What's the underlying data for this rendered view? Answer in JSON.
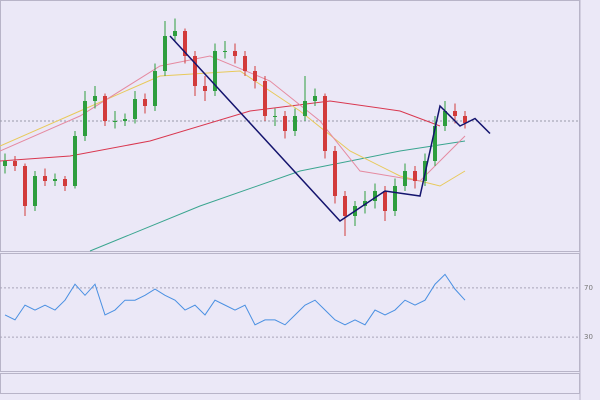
{
  "chart_data": [
    {
      "type": "candlestick",
      "xlim": [
        -0.5,
        57.5
      ],
      "ylim": [
        0,
        100
      ],
      "up_color": "#2e9e3e",
      "down_color": "#d23b3b",
      "hline": 52,
      "ohlc": [
        [
          34,
          39,
          31,
          36
        ],
        [
          36,
          38,
          32,
          34
        ],
        [
          34,
          35,
          14,
          18
        ],
        [
          18,
          32,
          16,
          30
        ],
        [
          30,
          33,
          26,
          28
        ],
        [
          28,
          31,
          26,
          28.8
        ],
        [
          28.8,
          30,
          24,
          26
        ],
        [
          26,
          48,
          25,
          46
        ],
        [
          46,
          64,
          44,
          60
        ],
        [
          60,
          66,
          57,
          62
        ],
        [
          62,
          63,
          50,
          52
        ],
        [
          52,
          56,
          49,
          52
        ],
        [
          52,
          55,
          50,
          52.8
        ],
        [
          52.8,
          64,
          51,
          60.8
        ],
        [
          60.8,
          63,
          55,
          58
        ],
        [
          58,
          75,
          56,
          72
        ],
        [
          72,
          92,
          70,
          86
        ],
        [
          86,
          93,
          84,
          88
        ],
        [
          88,
          89,
          75,
          78
        ],
        [
          78,
          80,
          62,
          66
        ],
        [
          66,
          70,
          60,
          64
        ],
        [
          64,
          83,
          62,
          80
        ],
        [
          80,
          84,
          77,
          80
        ],
        [
          80,
          83,
          75,
          78
        ],
        [
          78,
          80,
          70,
          72
        ],
        [
          72,
          74,
          65,
          68
        ],
        [
          68,
          70,
          52,
          54
        ],
        [
          54,
          57,
          50,
          54
        ],
        [
          54,
          56,
          45,
          48
        ],
        [
          48,
          57,
          46,
          54
        ],
        [
          54,
          70,
          52,
          60
        ],
        [
          60,
          65,
          58,
          62
        ],
        [
          62,
          63,
          37,
          40
        ],
        [
          40,
          42,
          19,
          22
        ],
        [
          22,
          24,
          6,
          14
        ],
        [
          14,
          20,
          10,
          18
        ],
        [
          18,
          24,
          15,
          20
        ],
        [
          20,
          27,
          17,
          24
        ],
        [
          24,
          26,
          12,
          16
        ],
        [
          16,
          29,
          14,
          26
        ],
        [
          26,
          35,
          24,
          32
        ],
        [
          32,
          34,
          25,
          28
        ],
        [
          28,
          39,
          26,
          36
        ],
        [
          36,
          54,
          34,
          50
        ],
        [
          50,
          60,
          48,
          56
        ],
        [
          56,
          59,
          51,
          54
        ],
        [
          54,
          56,
          49,
          51.2
        ]
      ],
      "series": [
        {
          "color": "#d9374f",
          "x": [
            -0.5,
            6.5,
            14.5,
            24.5,
            32.5,
            39.5,
            43.5
          ],
          "values": [
            36,
            38,
            44,
            56,
            60,
            56,
            50
          ]
        },
        {
          "color": "#3aa58f",
          "x": [
            8.5,
            19.5,
            29.5,
            39.5,
            46
          ],
          "values": [
            0,
            18,
            32,
            40,
            44
          ]
        },
        {
          "color": "#e8c95a",
          "x": [
            -0.5,
            7.5,
            15.5,
            23.5,
            29.5,
            34.5,
            39.5,
            43.5,
            46
          ],
          "values": [
            42,
            56,
            70,
            72,
            56,
            40,
            30,
            26,
            32
          ]
        },
        {
          "color": "#e58aa0",
          "x": [
            -0.5,
            7.5,
            15.5,
            20.5,
            26.5,
            31.5,
            35.5,
            41.5,
            46
          ],
          "values": [
            40,
            54,
            74,
            78,
            68,
            52,
            32,
            28,
            46
          ]
        }
      ],
      "zigzag": {
        "color": "#14146e",
        "x": [
          16.5,
          33.5,
          38,
          41.5,
          43.5,
          45.5,
          47,
          48.5
        ],
        "values": [
          86,
          12,
          24,
          22,
          58,
          50,
          53,
          47
        ]
      }
    },
    {
      "type": "line",
      "xlim": [
        -0.5,
        57.5
      ],
      "ylim": [
        0,
        100
      ],
      "yticks": [
        30,
        70
      ],
      "color": "#4a90e2",
      "values": [
        48,
        44,
        56,
        52,
        56,
        52,
        60,
        73,
        64,
        73,
        48,
        52,
        60,
        60,
        64,
        69,
        64,
        60,
        52,
        56,
        48,
        60,
        56,
        52,
        56,
        40,
        44,
        44,
        40,
        48,
        56,
        60,
        52,
        44,
        40,
        44,
        40,
        52,
        48,
        52,
        60,
        56,
        60,
        73,
        81,
        69,
        60
      ]
    }
  ]
}
